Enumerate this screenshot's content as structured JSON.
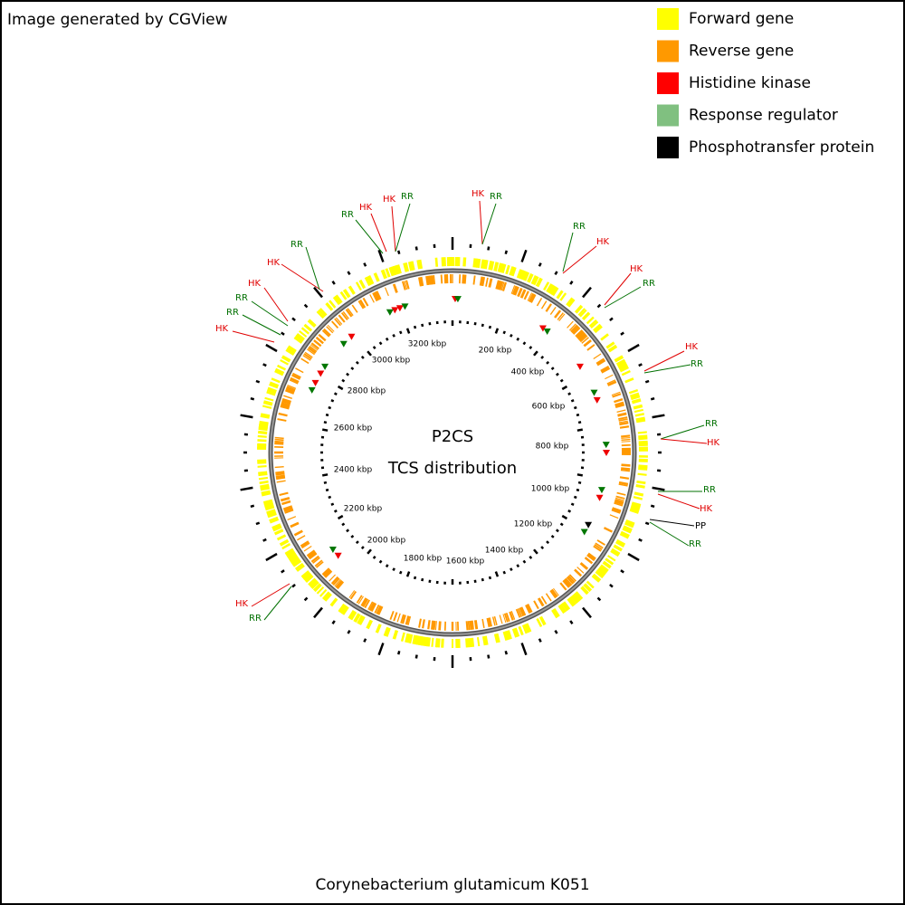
{
  "header": {
    "credit": "Image generated by CGView"
  },
  "legend": [
    {
      "label": "Forward gene",
      "color": "#ffff00"
    },
    {
      "label": "Reverse gene",
      "color": "#ff9900"
    },
    {
      "label": "Histidine kinase",
      "color": "#ff0000"
    },
    {
      "label": "Response regulator",
      "color": "#80c080"
    },
    {
      "label": "Phosphotransfer protein",
      "color": "#000000"
    }
  ],
  "center": {
    "title": "P2CS",
    "subtitle": "TCS distribution"
  },
  "ticks": [
    "200 kbp",
    "400 kbp",
    "600 kbp",
    "800 kbp",
    "1000 kbp",
    "1200 kbp",
    "1400 kbp",
    "1600 kbp",
    "1800 kbp",
    "2000 kbp",
    "2200 kbp",
    "2400 kbp",
    "2600 kbp",
    "2800 kbp",
    "3000 kbp",
    "3200 kbp"
  ],
  "features": [
    {
      "label": "HK",
      "color": "#e00000"
    },
    {
      "label": "RR",
      "color": "#007000"
    },
    {
      "label": "RR",
      "color": "#007000"
    },
    {
      "label": "HK",
      "color": "#e00000"
    },
    {
      "label": "HK",
      "color": "#e00000"
    },
    {
      "label": "RR",
      "color": "#007000"
    },
    {
      "label": "RR",
      "color": "#007000"
    },
    {
      "label": "HK",
      "color": "#e00000"
    },
    {
      "label": "HK",
      "color": "#e00000"
    },
    {
      "label": "RR",
      "color": "#007000"
    },
    {
      "label": "HK",
      "color": "#e00000"
    },
    {
      "label": "RR",
      "color": "#007000"
    },
    {
      "label": "RR",
      "color": "#007000"
    },
    {
      "label": "HK",
      "color": "#e00000"
    },
    {
      "label": "HK",
      "color": "#e00000"
    },
    {
      "label": "RR",
      "color": "#007000"
    },
    {
      "label": "HK",
      "color": "#e00000"
    },
    {
      "label": "RR",
      "color": "#007000"
    },
    {
      "label": "RR",
      "color": "#007000"
    },
    {
      "label": "HK",
      "color": "#e00000"
    },
    {
      "label": "RR",
      "color": "#007000"
    },
    {
      "label": "HK",
      "color": "#e00000"
    },
    {
      "label": "PP",
      "color": "#000000"
    },
    {
      "label": "RR",
      "color": "#007000"
    },
    {
      "label": "HK",
      "color": "#e00000"
    },
    {
      "label": "RR",
      "color": "#007000"
    }
  ],
  "caption": "Corynebacterium glutamicum K051"
}
